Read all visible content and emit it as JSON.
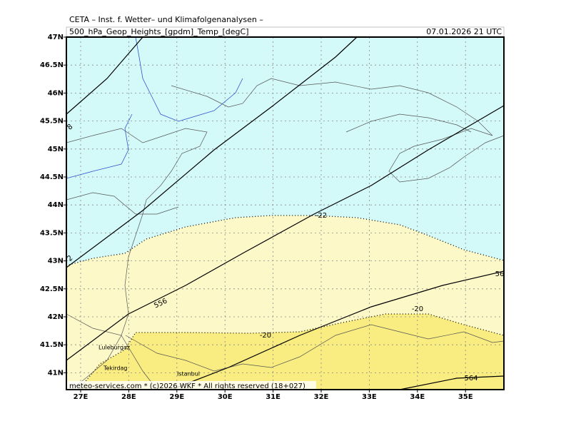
{
  "header": {
    "title": "CETA – Inst. f. Wetter– und Klimafolgenanalysen –",
    "field": "500_hPa_Geop_Heights_[gpdm]_Temp_[degC]",
    "valid_time": "07.01.2026 21 UTC"
  },
  "map": {
    "lat_labels": [
      "47N",
      "46.5N",
      "46N",
      "45.5N",
      "45N",
      "44.5N",
      "44N",
      "43.5N",
      "43N",
      "42.5N",
      "42N",
      "41.5N",
      "41N"
    ],
    "lon_labels": [
      "27E",
      "28E",
      "29E",
      "30E",
      "31E",
      "32E",
      "33E",
      "34E",
      "35E"
    ],
    "contour_labels": [
      "8",
      "2",
      "556",
      "56",
      "564",
      "-22",
      "-20",
      "-20"
    ],
    "places": [
      "Luleburgaz",
      "Tekirdag",
      "Istanbul"
    ]
  },
  "footer": {
    "credit": "meteo-services.com * (c)2026 WKF * All rights reserved (18+027)"
  }
}
